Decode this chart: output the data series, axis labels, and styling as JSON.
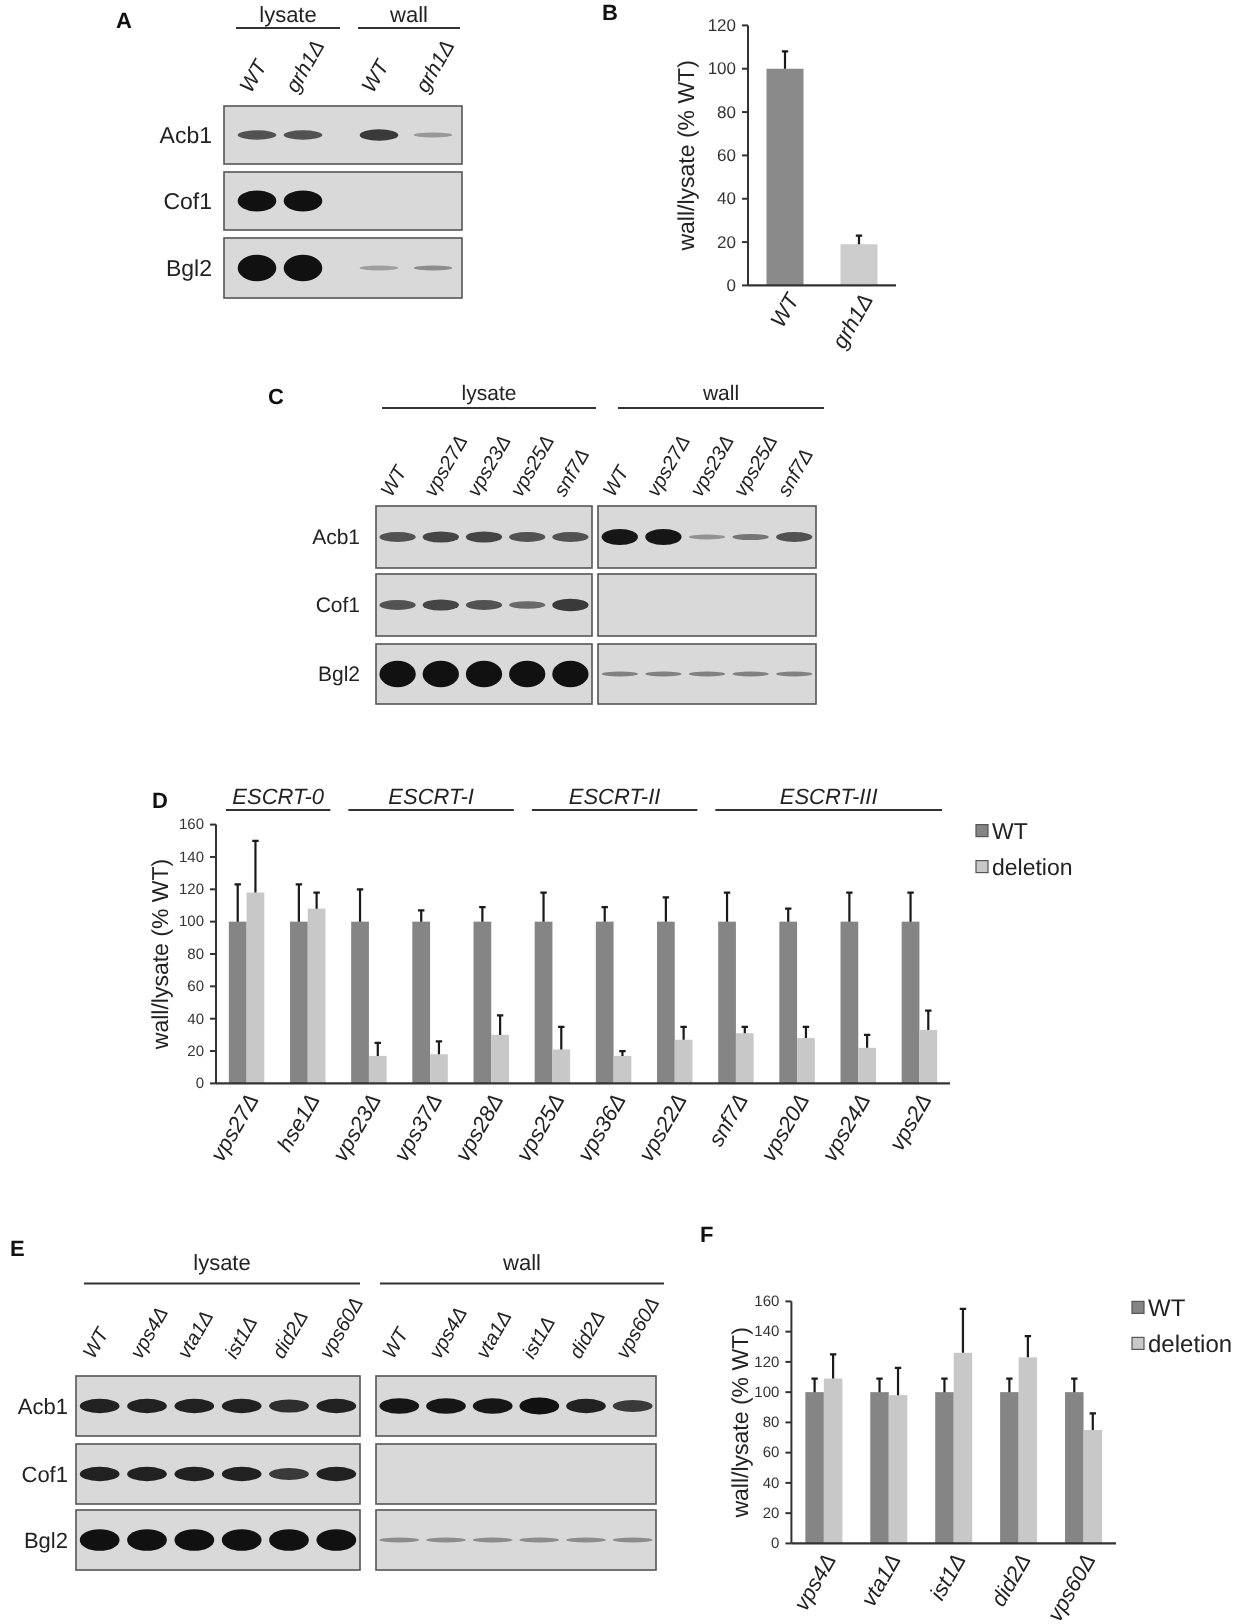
{
  "chart_data": [
    {
      "type": "other",
      "title": "A",
      "categories": [
        "WT",
        "grh1Δ",
        "WT",
        "grh1Δ"
      ],
      "y_categories": [
        "Acb1",
        "Cof1",
        "Bgl2"
      ],
      "annotations": [
        "lysate",
        "wall"
      ]
    },
    {
      "type": "bar",
      "title": "B",
      "categories": [
        "WT",
        "grh1Δ"
      ],
      "values": [
        100,
        19
      ],
      "colors": [
        "#8a8a8a",
        "#cccccc"
      ],
      "errors": [
        [
          100,
          108
        ],
        [
          19,
          23
        ]
      ],
      "ylabel": "wall/lysate (% WT)",
      "ylim": [
        0,
        120
      ],
      "yticks": [
        0,
        20,
        40,
        60,
        80,
        100,
        120
      ]
    },
    {
      "type": "other",
      "title": "C",
      "categories": [
        "WT",
        "vps27Δ",
        "vps23Δ",
        "vps25Δ",
        "snf7Δ",
        "WT",
        "vps27Δ",
        "vps23Δ",
        "vps25Δ",
        "snf7Δ"
      ],
      "y_categories": [
        "Acb1",
        "Cof1",
        "Bgl2"
      ],
      "annotations": [
        "lysate",
        "wall"
      ]
    },
    {
      "type": "bar",
      "title": "D",
      "categories": [
        "vps27Δ",
        "hse1Δ",
        "vps23Δ",
        "vps37Δ",
        "vps28Δ",
        "vps25Δ",
        "vps36Δ",
        "vps22Δ",
        "snf7Δ",
        "vps20Δ",
        "vps24Δ",
        "vps2Δ"
      ],
      "series": [
        {
          "name": "WT",
          "color": "#858585",
          "values": [
            100,
            100,
            100,
            100,
            100,
            100,
            100,
            100,
            100,
            100,
            100,
            100
          ],
          "errors": [
            [
              100,
              123
            ],
            [
              100,
              123
            ],
            [
              100,
              120
            ],
            [
              100,
              107
            ],
            [
              100,
              109
            ],
            [
              100,
              118
            ],
            [
              100,
              109
            ],
            [
              100,
              115
            ],
            [
              100,
              118
            ],
            [
              100,
              108
            ],
            [
              100,
              118
            ],
            [
              100,
              118
            ]
          ]
        },
        {
          "name": "deletion",
          "color": "#c8c8c8",
          "values": [
            118,
            108,
            17,
            18,
            30,
            21,
            17,
            27,
            31,
            28,
            22,
            33
          ],
          "errors": [
            [
              118,
              150
            ],
            [
              108,
              118
            ],
            [
              17,
              25
            ],
            [
              18,
              26
            ],
            [
              30,
              42
            ],
            [
              21,
              35
            ],
            [
              17,
              20
            ],
            [
              27,
              35
            ],
            [
              31,
              35
            ],
            [
              28,
              35
            ],
            [
              22,
              30
            ],
            [
              33,
              45
            ]
          ]
        }
      ],
      "ylabel": "wall/lysate (% WT)",
      "ylim": [
        0,
        160
      ],
      "yticks": [
        0,
        20,
        40,
        60,
        80,
        100,
        120,
        140,
        160
      ],
      "legend": "top right",
      "annotations": [
        "ESCRT-0",
        "ESCRT-I",
        "ESCRT-II",
        "ESCRT-III"
      ]
    },
    {
      "type": "other",
      "title": "E",
      "categories": [
        "WT",
        "vps4Δ",
        "vta1Δ",
        "ist1Δ",
        "did2Δ",
        "vps60Δ",
        "WT",
        "vps4Δ",
        "vta1Δ",
        "ist1Δ",
        "did2Δ",
        "vps60Δ"
      ],
      "y_categories": [
        "Acb1",
        "Cof1",
        "Bgl2"
      ],
      "annotations": [
        "lysate",
        "wall"
      ]
    },
    {
      "type": "bar",
      "title": "F",
      "categories": [
        "vps4Δ",
        "vta1Δ",
        "ist1Δ",
        "did2Δ",
        "vps60Δ"
      ],
      "series": [
        {
          "name": "WT",
          "color": "#858585",
          "values": [
            100,
            100,
            100,
            100,
            100
          ],
          "errors": [
            [
              100,
              109
            ],
            [
              100,
              109
            ],
            [
              100,
              109
            ],
            [
              100,
              109
            ],
            [
              100,
              109
            ]
          ]
        },
        {
          "name": "deletion",
          "color": "#c8c8c8",
          "values": [
            109,
            98,
            126,
            123,
            75
          ],
          "errors": [
            [
              109,
              125
            ],
            [
              98,
              116
            ],
            [
              126,
              155
            ],
            [
              123,
              137
            ],
            [
              75,
              86
            ]
          ]
        }
      ],
      "ylabel": "wall/lysate (% WT)",
      "ylim": [
        0,
        160
      ],
      "yticks": [
        0,
        20,
        40,
        60,
        80,
        100,
        120,
        140,
        160
      ],
      "legend": "top right"
    }
  ]
}
